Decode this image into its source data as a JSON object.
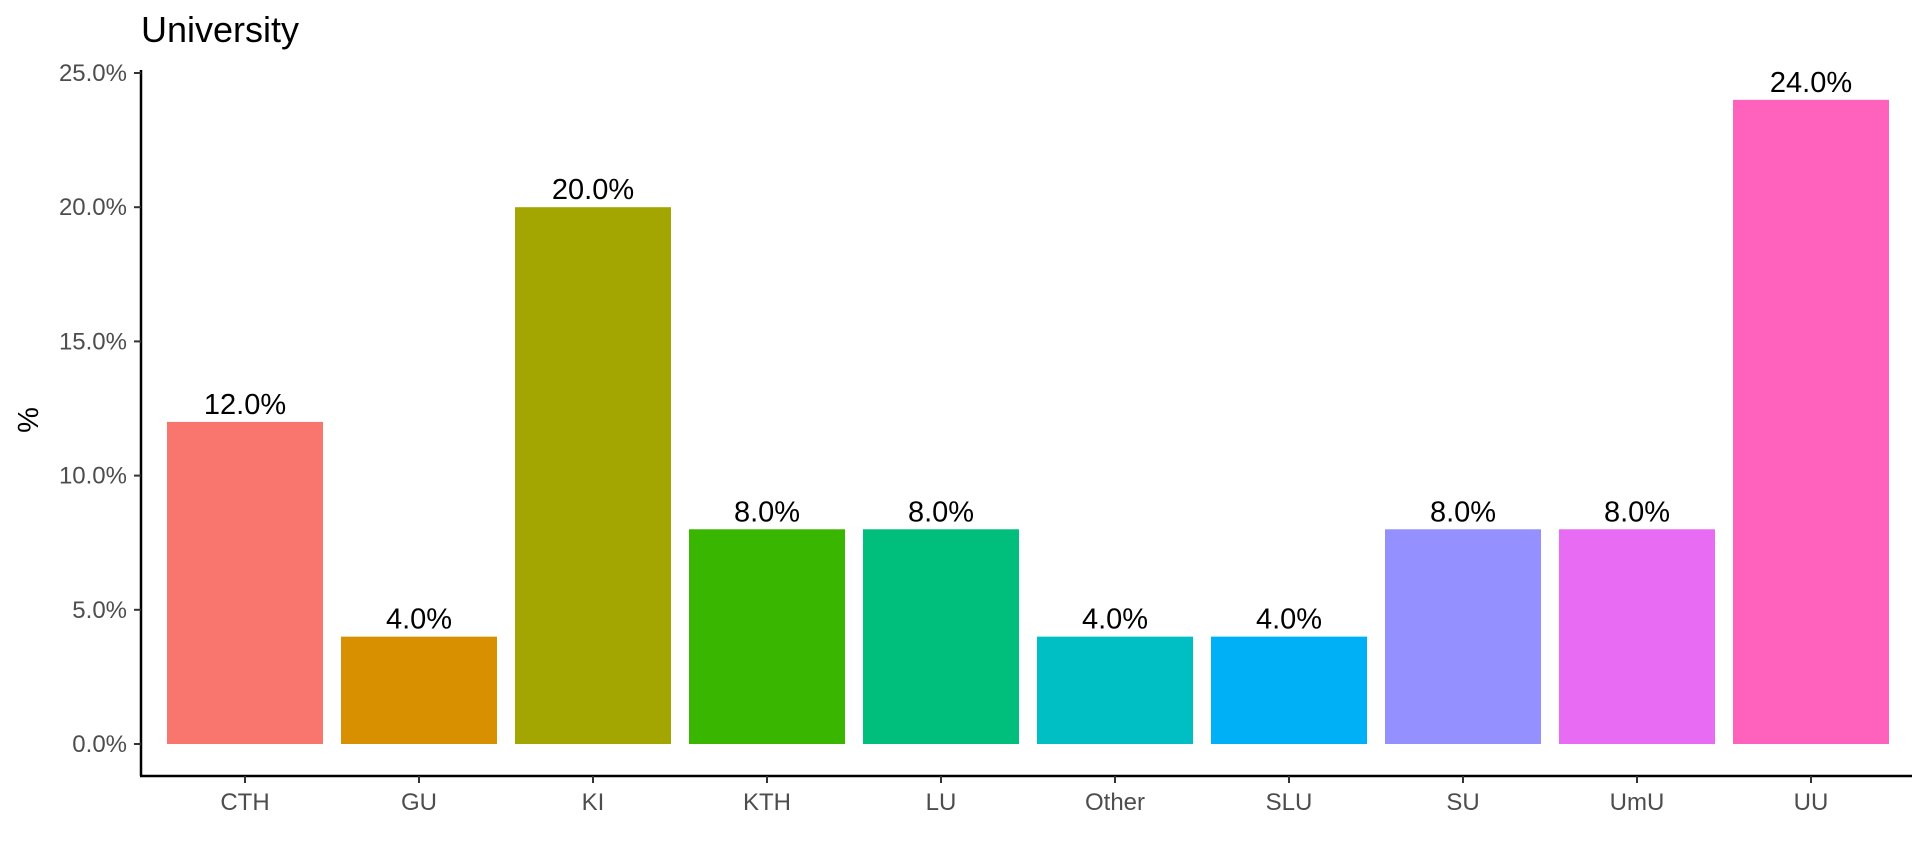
{
  "chart_data": {
    "type": "bar",
    "title": "University",
    "xlabel": "",
    "ylabel": "%",
    "categories": [
      "CTH",
      "GU",
      "KI",
      "KTH",
      "LU",
      "Other",
      "SLU",
      "SU",
      "UmU",
      "UU"
    ],
    "values": [
      12.0,
      4.0,
      20.0,
      8.0,
      8.0,
      4.0,
      4.0,
      8.0,
      8.0,
      24.0
    ],
    "value_labels": [
      "12.0%",
      "4.0%",
      "20.0%",
      "8.0%",
      "8.0%",
      "4.0%",
      "4.0%",
      "8.0%",
      "8.0%",
      "24.0%"
    ],
    "colors": [
      "#F8766D",
      "#D89000",
      "#A3A500",
      "#39B600",
      "#00BF7D",
      "#00BFC4",
      "#00B0F6",
      "#9590FF",
      "#E76BF3",
      "#FF62BC"
    ],
    "ylim": [
      0,
      25
    ],
    "yticks": [
      0,
      5,
      10,
      15,
      20,
      25
    ],
    "ytick_labels": [
      "0.0%",
      "5.0%",
      "10.0%",
      "15.0%",
      "20.0%",
      "25.0%"
    ],
    "grid": false,
    "legend": "none"
  }
}
